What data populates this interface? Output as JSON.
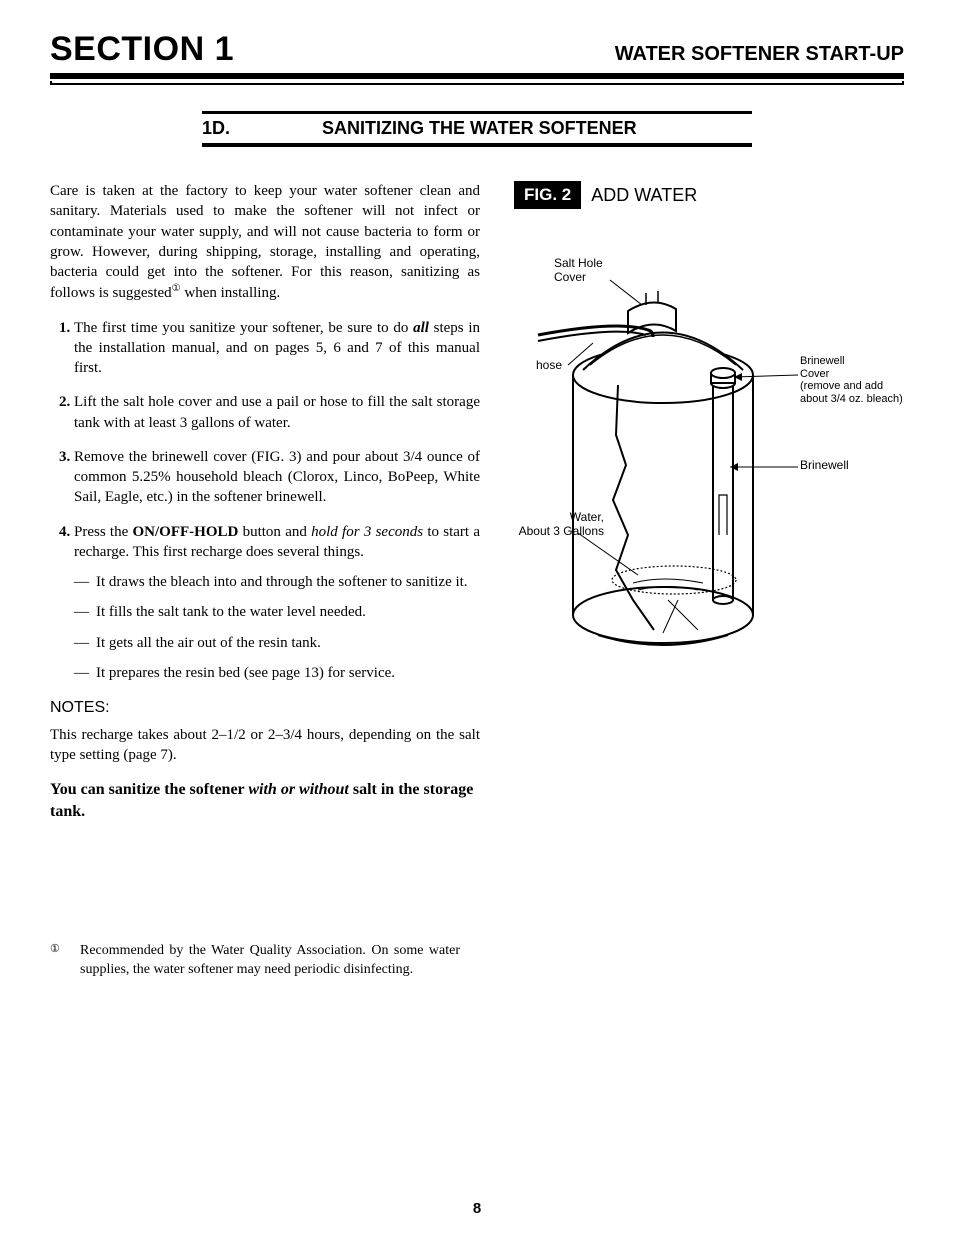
{
  "header": {
    "left": "SECTION 1",
    "right": "WATER SOFTENER START-UP"
  },
  "subhead": {
    "num": "1D.",
    "title": "SANITIZING THE WATER SOFTENER"
  },
  "intro": "Care is taken at the factory to keep your water softener clean and sanitary. Materials used to make the softener will not infect or contaminate your water supply, and will not cause bacteria to form or grow. However, during shipping, storage, installing and operating, bacteria could get into the softener. For this reason, sanitizing as follows is suggested",
  "intro_tail": " when installing.",
  "sup_mark": "①",
  "steps": [
    {
      "pre": "The first time you sanitize your softener, be sure to do ",
      "bold_ital": "all",
      "post": " steps in the installation manual, and on pages 5, 6 and 7 of this manual first."
    },
    {
      "text": "Lift the salt hole cover and use a pail or hose to fill the salt storage tank with at least 3 gallons of water."
    },
    {
      "text": "Remove the brinewell cover (FIG. 3) and pour about 3/4 ounce of common 5.25% household bleach (Clorox, Linco, BoPeep, White Sail, Eagle, etc.) in the softener brinewell."
    },
    {
      "pre": "Press the ",
      "bold": "ON/OFF-HOLD",
      "mid": " button and ",
      "ital": "hold for 3 seconds",
      "post": " to start a recharge. This first recharge does several things."
    }
  ],
  "sub": [
    "It draws the bleach into and through the softener to sanitize it.",
    "It fills the salt tank to the water level needed.",
    "It gets all the air out of the resin tank.",
    "It prepares the resin bed (see page 13) for service."
  ],
  "notes_label": "NOTES:",
  "notes_text": "This recharge takes about 2–1/2 or 2–3/4 hours, depending on the salt type setting (page 7).",
  "emph": {
    "a": "You can sanitize the softener ",
    "b": "with or without",
    "c": " salt in the storage tank."
  },
  "footnote": {
    "mark": "①",
    "text": "Recommended by the Water Quality Association. On some water supplies, the water softener may need periodic disinfecting."
  },
  "figure": {
    "badge": "FIG. 2",
    "title": "ADD WATER",
    "labels": {
      "salt_hole": "Salt Hole\nCover",
      "hose": "hose",
      "brinewell_cover": "Brinewell\nCover\n(remove and add\nabout 3/4 oz. bleach)",
      "brinewell": "Brinewell",
      "water": "Water,\nAbout 3 Gallons"
    },
    "stroke": "#000000",
    "fill": "#ffffff",
    "linewidth": 2,
    "svg_viewbox": "0 0 400 440"
  },
  "pagenum": "8"
}
